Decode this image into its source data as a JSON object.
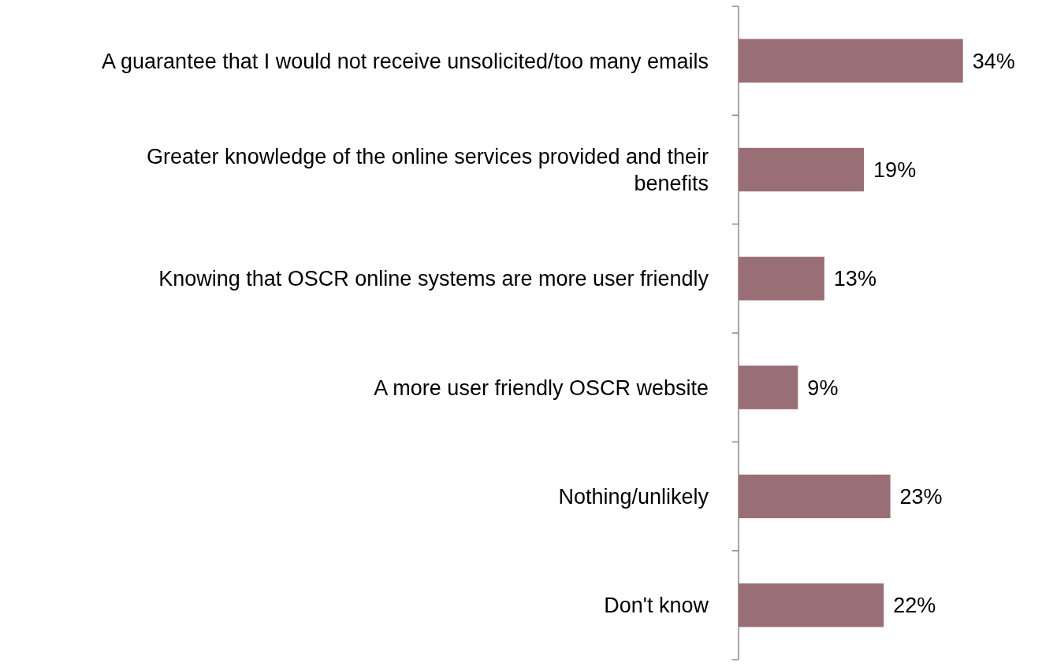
{
  "chart_data": {
    "type": "bar",
    "orientation": "horizontal",
    "categories": [
      "A guarantee that I would not receive unsolicited/too many emails",
      "Greater knowledge of the online services provided and their benefits",
      "Knowing that OSCR online systems are more user friendly",
      "A more user friendly OSCR website",
      "Nothing/unlikely",
      "Don't know"
    ],
    "values": [
      34,
      19,
      13,
      9,
      23,
      22
    ],
    "color": "#996e74",
    "value_labels": [
      "34%",
      "19%",
      "13%",
      "9%",
      "23%",
      "22%"
    ]
  }
}
